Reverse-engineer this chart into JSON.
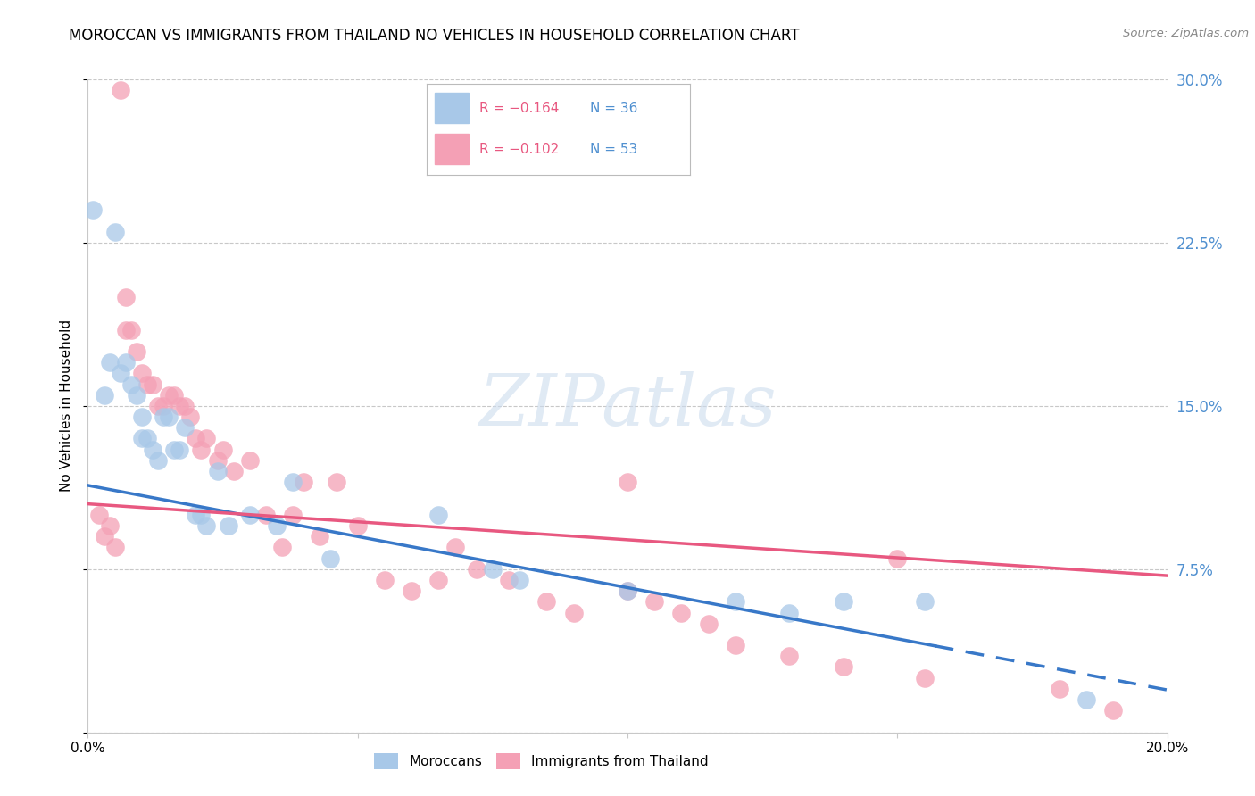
{
  "title": "MOROCCAN VS IMMIGRANTS FROM THAILAND NO VEHICLES IN HOUSEHOLD CORRELATION CHART",
  "source_text": "Source: ZipAtlas.com",
  "ylabel": "No Vehicles in Household",
  "legend_label_blue": "Moroccans",
  "legend_label_pink": "Immigrants from Thailand",
  "legend_R_blue": "R = −0.164",
  "legend_N_blue": "N = 36",
  "legend_R_pink": "R = −0.102",
  "legend_N_pink": "N = 53",
  "xlim": [
    0.0,
    0.2
  ],
  "ylim": [
    0.0,
    0.3
  ],
  "yticks": [
    0.0,
    0.075,
    0.15,
    0.225,
    0.3
  ],
  "ytick_labels": [
    "",
    "7.5%",
    "15.0%",
    "22.5%",
    "30.0%"
  ],
  "xtick_positions": [
    0.0,
    0.05,
    0.1,
    0.15,
    0.2
  ],
  "xtick_labels": [
    "0.0%",
    "",
    "",
    "",
    "20.0%"
  ],
  "color_blue": "#a8c8e8",
  "color_pink": "#f4a0b5",
  "line_color_blue": "#3878c8",
  "line_color_pink": "#e85880",
  "blue_line_intercept": 0.1135,
  "blue_line_slope": -0.47,
  "pink_line_intercept": 0.105,
  "pink_line_slope": -0.165,
  "blue_line_solid_end": 0.157,
  "blue_scatter_x": [
    0.001,
    0.003,
    0.004,
    0.005,
    0.006,
    0.007,
    0.008,
    0.009,
    0.01,
    0.01,
    0.011,
    0.012,
    0.013,
    0.014,
    0.015,
    0.016,
    0.017,
    0.018,
    0.02,
    0.021,
    0.022,
    0.024,
    0.026,
    0.03,
    0.035,
    0.038,
    0.045,
    0.065,
    0.075,
    0.08,
    0.1,
    0.12,
    0.13,
    0.14,
    0.155,
    0.185
  ],
  "blue_scatter_y": [
    0.24,
    0.155,
    0.17,
    0.23,
    0.165,
    0.17,
    0.16,
    0.155,
    0.145,
    0.135,
    0.135,
    0.13,
    0.125,
    0.145,
    0.145,
    0.13,
    0.13,
    0.14,
    0.1,
    0.1,
    0.095,
    0.12,
    0.095,
    0.1,
    0.095,
    0.115,
    0.08,
    0.1,
    0.075,
    0.07,
    0.065,
    0.06,
    0.055,
    0.06,
    0.06,
    0.015
  ],
  "pink_scatter_x": [
    0.002,
    0.003,
    0.004,
    0.005,
    0.006,
    0.007,
    0.007,
    0.008,
    0.009,
    0.01,
    0.011,
    0.012,
    0.013,
    0.014,
    0.015,
    0.016,
    0.017,
    0.018,
    0.019,
    0.02,
    0.021,
    0.022,
    0.024,
    0.025,
    0.027,
    0.03,
    0.033,
    0.036,
    0.038,
    0.04,
    0.043,
    0.046,
    0.05,
    0.055,
    0.06,
    0.065,
    0.068,
    0.072,
    0.078,
    0.085,
    0.09,
    0.1,
    0.1,
    0.105,
    0.11,
    0.115,
    0.12,
    0.13,
    0.14,
    0.15,
    0.155,
    0.18,
    0.19
  ],
  "pink_scatter_y": [
    0.1,
    0.09,
    0.095,
    0.085,
    0.295,
    0.2,
    0.185,
    0.185,
    0.175,
    0.165,
    0.16,
    0.16,
    0.15,
    0.15,
    0.155,
    0.155,
    0.15,
    0.15,
    0.145,
    0.135,
    0.13,
    0.135,
    0.125,
    0.13,
    0.12,
    0.125,
    0.1,
    0.085,
    0.1,
    0.115,
    0.09,
    0.115,
    0.095,
    0.07,
    0.065,
    0.07,
    0.085,
    0.075,
    0.07,
    0.06,
    0.055,
    0.115,
    0.065,
    0.06,
    0.055,
    0.05,
    0.04,
    0.035,
    0.03,
    0.08,
    0.025,
    0.02,
    0.01
  ],
  "watermark_text": "ZIPatlas",
  "background_color": "#ffffff",
  "grid_color": "#c8c8c8",
  "right_axis_color": "#5090d0",
  "title_fontsize": 12,
  "axis_label_fontsize": 11,
  "tick_fontsize": 11
}
